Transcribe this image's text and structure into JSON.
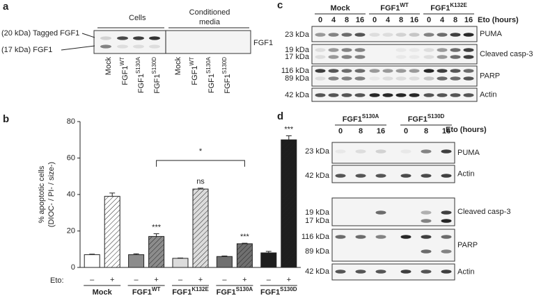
{
  "panels": {
    "a": {
      "label": "a",
      "headers": [
        "Cells",
        [
          "Conditioned",
          "media"
        ]
      ],
      "left_labels": [
        "(20 kDa) Tagged FGF1",
        "(17 kDa) FGF1"
      ],
      "right_label": "FGF1",
      "lanes": [
        {
          "base": "Mock"
        },
        {
          "base": "FGF1",
          "sup": "WT"
        },
        {
          "base": "FGF1",
          "sup": "S130A"
        },
        {
          "base": "FGF1",
          "sup": "S130D"
        },
        {
          "base": "Mock"
        },
        {
          "base": "FGF1",
          "sup": "WT"
        },
        {
          "base": "FGF1",
          "sup": "S130A"
        },
        {
          "base": "FGF1",
          "sup": "S130D"
        }
      ]
    },
    "c": {
      "label": "c",
      "groups": [
        {
          "base": "Mock"
        },
        {
          "base": "FGF1",
          "sup": "WT"
        },
        {
          "base": "FGF1",
          "sup": "K132E"
        }
      ],
      "eto_label": "Eto (hours)",
      "times": [
        "0",
        "4",
        "8",
        "16"
      ],
      "rows": [
        {
          "kda": [
            "23 kDa"
          ],
          "protein": "PUMA"
        },
        {
          "kda": [
            "19 kDa",
            "17 kDa"
          ],
          "protein": "Cleaved casp-3"
        },
        {
          "kda": [
            "116 kDa",
            "89 kDa"
          ],
          "protein": "PARP"
        },
        {
          "kda": [
            "42 kDa"
          ],
          "protein": "Actin"
        }
      ]
    },
    "d": {
      "label": "d",
      "groups": [
        {
          "base": "FGF1",
          "sup": "S130A"
        },
        {
          "base": "FGF1",
          "sup": "S130D"
        }
      ],
      "eto_label": "Eto (hours)",
      "times": [
        "0",
        "8",
        "16"
      ],
      "rows": [
        {
          "kda": [
            "23 kDa"
          ],
          "protein": "PUMA"
        },
        {
          "kda": [
            "42 kDa"
          ],
          "protein": "Actin"
        },
        {
          "kda": [
            "19 kDa",
            "17 kDa"
          ],
          "protein": "Cleaved casp-3"
        },
        {
          "kda": [
            "116 kDa",
            "89 kDa"
          ],
          "protein": "PARP"
        },
        {
          "kda": [
            "42 kDa"
          ],
          "protein": "Actin"
        }
      ]
    }
  },
  "chart_data": {
    "type": "bar",
    "panel_label": "b",
    "ylabel": [
      "% apoptotic cells",
      "(DIOC- / PI- / size-)"
    ],
    "ylim": [
      0,
      80
    ],
    "yticks": [
      0,
      20,
      40,
      60,
      80
    ],
    "x_label": "Eto:",
    "categories": [
      {
        "base": "Mock"
      },
      {
        "base": "FGF1",
        "sup": "WT"
      },
      {
        "base": "FGF1",
        "sup": "K132E"
      },
      {
        "base": "FGF1",
        "sup": "S130A"
      },
      {
        "base": "FGF1",
        "sup": "S130D"
      }
    ],
    "series": [
      {
        "name": "–",
        "hatch": false,
        "colors": [
          "#ffffff",
          "#8c8c8c",
          "#dcdcdc",
          "#707070",
          "#1e1e1e"
        ],
        "values": [
          7,
          7,
          5,
          6,
          8
        ],
        "errors": [
          0.3,
          0.5,
          0.2,
          0.3,
          0.8
        ],
        "significance": [
          null,
          null,
          null,
          null,
          null
        ]
      },
      {
        "name": "+",
        "hatch": true,
        "colors": [
          "#ffffff",
          "#8c8c8c",
          "#dcdcdc",
          "#707070",
          "#1e1e1e"
        ],
        "values": [
          39,
          17,
          43,
          13,
          70
        ],
        "errors": [
          1.8,
          1.5,
          0.5,
          0.3,
          2.2
        ],
        "significance": [
          null,
          "***",
          "ns",
          "***",
          "***"
        ]
      }
    ],
    "bracket": {
      "text": "*"
    }
  }
}
